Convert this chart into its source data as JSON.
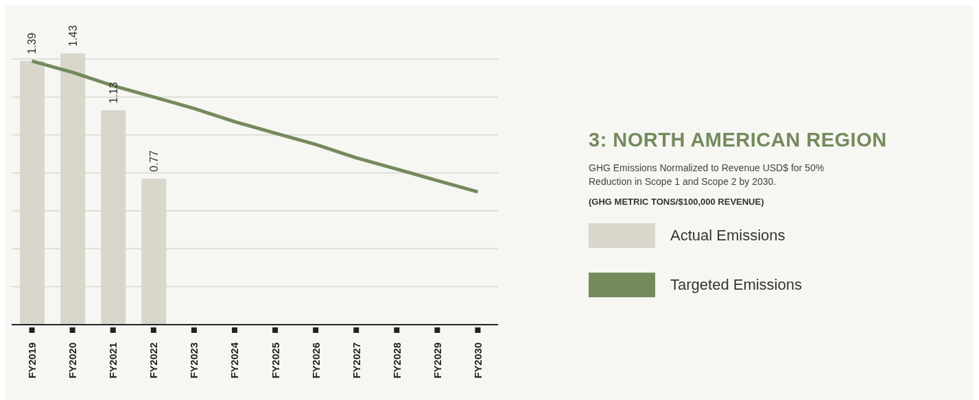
{
  "chart_data": {
    "type": "bar",
    "title": "3: NORTH AMERICAN REGION",
    "subtitle": "GHG Emissions Normalized to Revenue USD$ for 50% Reduction in Scope 1 and Scope 2 by 2030.",
    "annotations": [
      "(GHG METRIC TONS/$100,000 REVENUE)"
    ],
    "categories": [
      "FY2019",
      "FY2020",
      "FY2021",
      "FY2022",
      "FY2023",
      "FY2024",
      "FY2025",
      "FY2026",
      "FY2027",
      "FY2028",
      "FY2029",
      "FY2030"
    ],
    "series": [
      {
        "name": "Actual Emissions",
        "color": "#d9d6cc",
        "values": [
          1.39,
          1.43,
          1.13,
          0.77,
          null,
          null,
          null,
          null,
          null,
          null,
          null,
          null
        ],
        "value_labels": [
          "1.39",
          "1.43",
          "1.13",
          "0.77",
          null,
          null,
          null,
          null,
          null,
          null,
          null,
          null
        ]
      },
      {
        "name": "Targeted Emissions",
        "type": "line",
        "color": "#758a5c",
        "values": [
          1.39,
          1.33,
          1.26,
          1.2,
          1.14,
          1.07,
          1.01,
          0.95,
          0.88,
          0.82,
          0.76,
          0.7
        ]
      }
    ],
    "yticks": [
      {
        "value": 0,
        "label": null
      },
      {
        "value": 0.2,
        "label": null
      },
      {
        "value": 0.4,
        "label": null
      },
      {
        "value": 0.6,
        "label": null
      },
      {
        "value": 0.8,
        "label": null
      },
      {
        "value": 1,
        "label": null
      },
      {
        "value": 1.2,
        "label": null
      },
      {
        "value": 1.4,
        "label": null
      }
    ],
    "grid": "y",
    "legend": "right",
    "tick_labels": "x",
    "marker": "none",
    "line_style": "solid"
  }
}
